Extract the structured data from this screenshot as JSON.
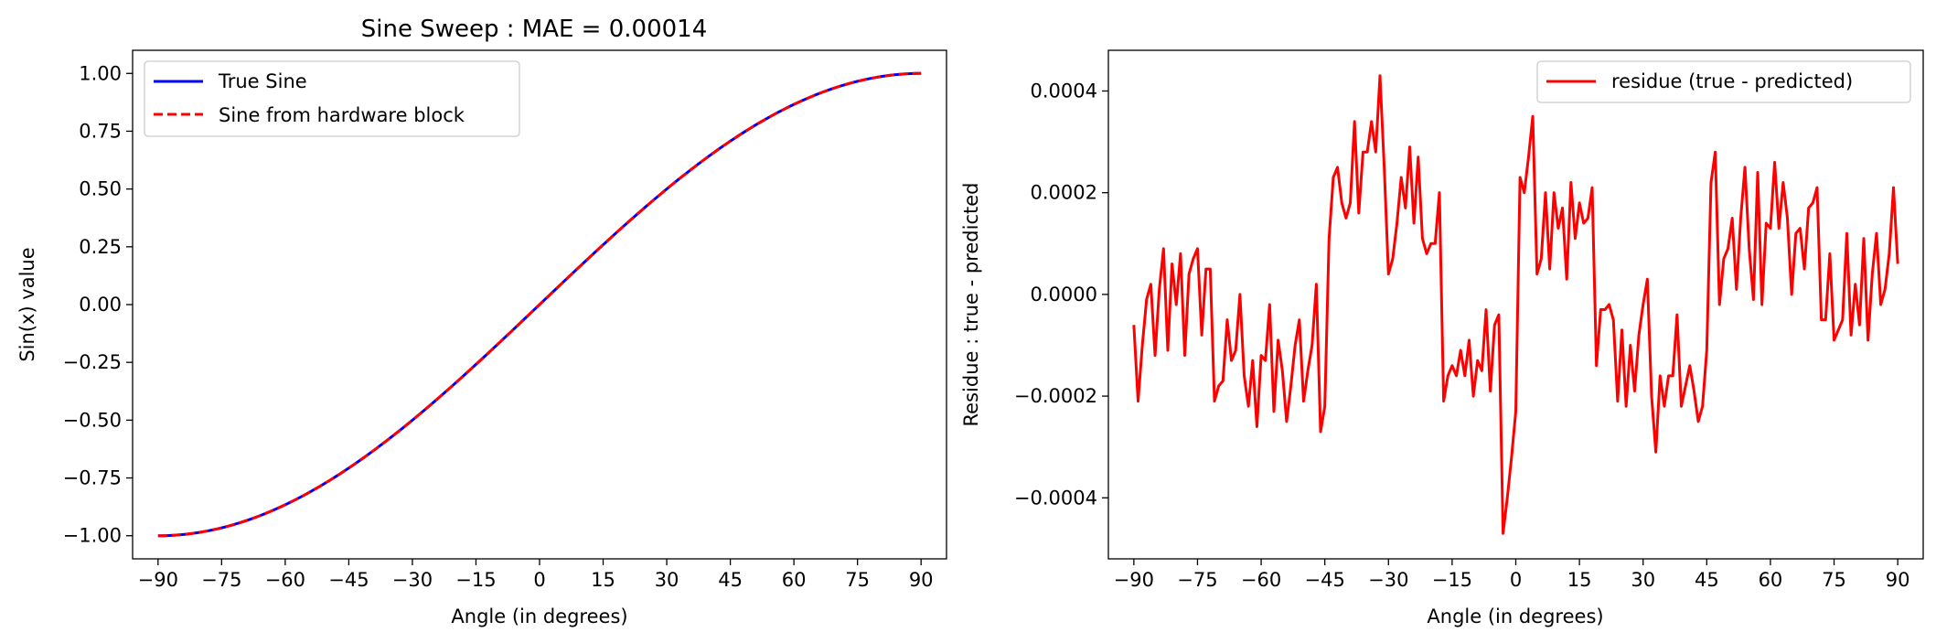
{
  "chart_data": [
    {
      "type": "line",
      "title": "Sine Sweep : MAE = 0.00014",
      "xlabel": "Angle (in degrees)",
      "ylabel": "Sin(x) value",
      "xlim": [
        -96,
        96
      ],
      "ylim": [
        -1.1,
        1.1
      ],
      "xticks": [
        -90,
        -75,
        -60,
        -45,
        -30,
        -15,
        0,
        15,
        30,
        45,
        60,
        75,
        90
      ],
      "yticks": [
        -1.0,
        -0.75,
        -0.5,
        -0.25,
        0.0,
        0.25,
        0.5,
        0.75,
        1.0
      ],
      "ytick_labels": [
        "−1.00",
        "−0.75",
        "−0.50",
        "−0.25",
        "0.00",
        "0.25",
        "0.50",
        "0.75",
        "1.00"
      ],
      "xtick_labels": [
        "−90",
        "−75",
        "−60",
        "−45",
        "−30",
        "−15",
        "0",
        "15",
        "30",
        "45",
        "60",
        "75",
        "90"
      ],
      "legend": "top-left",
      "grid": false,
      "series": [
        {
          "name": "True Sine",
          "color": "#0000ff",
          "style": "solid",
          "x": [
            -90,
            -75,
            -60,
            -45,
            -30,
            -15,
            0,
            15,
            30,
            45,
            60,
            75,
            90
          ],
          "y": [
            -1.0,
            -0.966,
            -0.866,
            -0.707,
            -0.5,
            -0.259,
            0.0,
            0.259,
            0.5,
            0.707,
            0.866,
            0.966,
            1.0
          ]
        },
        {
          "name": "Sine from hardware block",
          "color": "#ff0000",
          "style": "dashed",
          "x": [
            -90,
            -75,
            -60,
            -45,
            -30,
            -15,
            0,
            15,
            30,
            45,
            60,
            75,
            90
          ],
          "y": [
            -1.0,
            -0.966,
            -0.866,
            -0.707,
            -0.5,
            -0.259,
            0.0,
            0.259,
            0.5,
            0.707,
            0.866,
            0.966,
            1.0
          ]
        }
      ]
    },
    {
      "type": "line",
      "title": "",
      "xlabel": "Angle (in degrees)",
      "ylabel": "Residue : true - predicted",
      "xlim": [
        -96,
        96
      ],
      "ylim": [
        -0.00052,
        0.00048
      ],
      "xticks": [
        -90,
        -75,
        -60,
        -45,
        -30,
        -15,
        0,
        15,
        30,
        45,
        60,
        75,
        90
      ],
      "xtick_labels": [
        "−90",
        "−75",
        "−60",
        "−45",
        "−30",
        "−15",
        "0",
        "15",
        "30",
        "45",
        "60",
        "75",
        "90"
      ],
      "yticks": [
        -0.0004,
        -0.0002,
        0.0,
        0.0002,
        0.0004
      ],
      "ytick_labels": [
        "−0.0004",
        "−0.0002",
        "0.0000",
        "0.0002",
        "0.0004"
      ],
      "legend": "top-right",
      "grid": false,
      "series": [
        {
          "name": "residue (true - predicted)",
          "color": "#ff0000",
          "style": "solid",
          "x": [
            -90,
            -89,
            -88,
            -87,
            -86,
            -85,
            -84,
            -83,
            -82,
            -81,
            -80,
            -79,
            -78,
            -77,
            -76,
            -75,
            -74,
            -73,
            -72,
            -71,
            -70,
            -69,
            -68,
            -67,
            -66,
            -65,
            -64,
            -63,
            -62,
            -61,
            -60,
            -59,
            -58,
            -57,
            -56,
            -55,
            -54,
            -53,
            -52,
            -51,
            -50,
            -49,
            -48,
            -47,
            -46,
            -45,
            -44,
            -43,
            -42,
            -41,
            -40,
            -39,
            -38,
            -37,
            -36,
            -35,
            -34,
            -33,
            -32,
            -31,
            -30,
            -29,
            -28,
            -27,
            -26,
            -25,
            -24,
            -23,
            -22,
            -21,
            -20,
            -19,
            -18,
            -17,
            -16,
            -15,
            -14,
            -13,
            -12,
            -11,
            -10,
            -9,
            -8,
            -7,
            -6,
            -5,
            -4,
            -3,
            -2,
            -1,
            0,
            1,
            2,
            3,
            4,
            5,
            6,
            7,
            8,
            9,
            10,
            11,
            12,
            13,
            14,
            15,
            16,
            17,
            18,
            19,
            20,
            21,
            22,
            23,
            24,
            25,
            26,
            27,
            28,
            29,
            30,
            31,
            32,
            33,
            34,
            35,
            36,
            37,
            38,
            39,
            40,
            41,
            42,
            43,
            44,
            45,
            46,
            47,
            48,
            49,
            50,
            51,
            52,
            53,
            54,
            55,
            56,
            57,
            58,
            59,
            60,
            61,
            62,
            63,
            64,
            65,
            66,
            67,
            68,
            69,
            70,
            71,
            72,
            73,
            74,
            75,
            76,
            77,
            78,
            79,
            80,
            81,
            82,
            83,
            84,
            85,
            86,
            87,
            88,
            89,
            90
          ],
          "y": [
            -6e-05,
            -0.00021,
            -0.0001,
            -1e-05,
            2e-05,
            -0.00012,
            1e-05,
            9e-05,
            -0.00011,
            6e-05,
            -2e-05,
            8e-05,
            -0.00012,
            4e-05,
            7e-05,
            9e-05,
            -8e-05,
            5e-05,
            5e-05,
            -0.00021,
            -0.00018,
            -0.00017,
            -5e-05,
            -0.00013,
            -0.00011,
            0.0,
            -0.00016,
            -0.00022,
            -0.00013,
            -0.00026,
            -0.00012,
            -0.00013,
            -2e-05,
            -0.00023,
            -9e-05,
            -0.00015,
            -0.00025,
            -0.00018,
            -0.0001,
            -5e-05,
            -0.00021,
            -0.00015,
            -0.0001,
            2e-05,
            -0.00027,
            -0.00022,
            0.00011,
            0.00023,
            0.00025,
            0.00018,
            0.00015,
            0.00018,
            0.00034,
            0.00016,
            0.00028,
            0.00028,
            0.00034,
            0.00028,
            0.00043,
            0.00025,
            4e-05,
            7e-05,
            0.00014,
            0.00023,
            0.00017,
            0.00029,
            0.00014,
            0.00027,
            0.00011,
            8e-05,
            0.0001,
            0.0001,
            0.0002,
            -0.00021,
            -0.00016,
            -0.00014,
            -0.00016,
            -0.00011,
            -0.00016,
            -9e-05,
            -0.0002,
            -0.00013,
            -0.00015,
            -3e-05,
            -0.00019,
            -6e-05,
            -4e-05,
            -0.00047,
            -0.0004,
            -0.00032,
            -0.00023,
            0.00023,
            0.0002,
            0.00027,
            0.00035,
            4e-05,
            7e-05,
            0.0002,
            5e-05,
            0.0002,
            0.00013,
            0.00017,
            3e-05,
            0.00022,
            0.00011,
            0.00018,
            0.00014,
            0.00015,
            0.00021,
            -0.00014,
            -3e-05,
            -3e-05,
            -2e-05,
            -5e-05,
            -0.00021,
            -7e-05,
            -0.00022,
            -0.0001,
            -0.00019,
            -8e-05,
            -2e-05,
            3e-05,
            -0.0002,
            -0.00031,
            -0.00016,
            -0.00022,
            -0.00016,
            -0.00016,
            -4e-05,
            -0.00022,
            -0.00018,
            -0.00014,
            -0.00019,
            -0.00025,
            -0.00022,
            -0.00011,
            0.00022,
            0.00028,
            -2e-05,
            7e-05,
            9e-05,
            0.00015,
            1e-05,
            0.00015,
            0.00025,
            9e-05,
            -1e-05,
            0.00024,
            -2e-05,
            0.00014,
            0.00013,
            0.00026,
            0.00013,
            0.00022,
            0.00015,
            0.0,
            0.00012,
            0.00013,
            5e-05,
            0.00017,
            0.00018,
            0.00021,
            -5e-05,
            -5e-05,
            8e-05,
            -9e-05,
            -7e-05,
            -5e-05,
            0.00012,
            -8e-05,
            2e-05,
            -6e-05,
            0.00011,
            -9e-05,
            4e-05,
            0.00012,
            -2e-05,
            1e-05,
            8e-05,
            0.00021,
            6e-05
          ]
        }
      ]
    }
  ]
}
